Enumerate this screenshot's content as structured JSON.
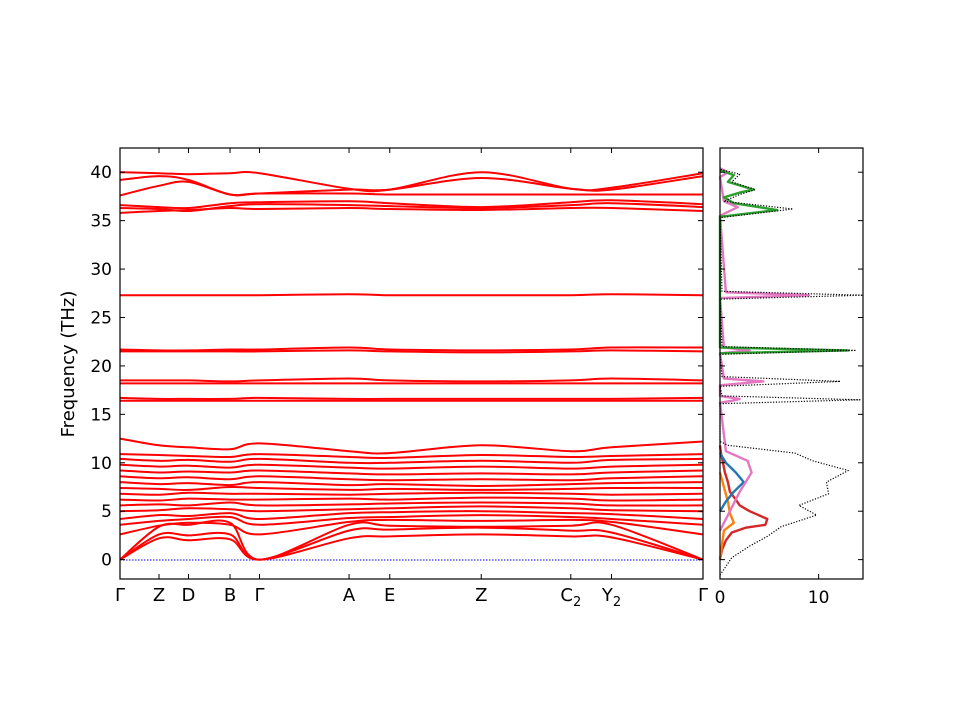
{
  "chart_data": [
    {
      "type": "line",
      "title": "",
      "ylabel": "Frequency (THz)",
      "xlabel": "",
      "ylim": [
        -2,
        42.5
      ],
      "yticks": [
        0,
        5,
        10,
        15,
        20,
        25,
        30,
        35,
        40
      ],
      "grid": false,
      "xticks": [
        {
          "label": "Γ",
          "x": 0
        },
        {
          "label": "Z",
          "x": 0.139
        },
        {
          "label": "D",
          "x": 0.244
        },
        {
          "label": "B",
          "x": 0.392
        },
        {
          "label": "Γ",
          "x": 0.497
        },
        {
          "label": "A",
          "x": 0.816
        },
        {
          "label": "E",
          "x": 0.961
        },
        {
          "label": "Z",
          "x": 1.287
        },
        {
          "label": "C",
          "sub": "2",
          "x": 1.606
        },
        {
          "label": "Y",
          "sub": "2",
          "x": 1.751
        },
        {
          "label": "Γ",
          "x": 2.077
        }
      ],
      "line_color": "#ff0000",
      "zero_line_color": "#0000ff",
      "series": [
        {
          "values": [
            0,
            2.2,
            2.0,
            2.1,
            0,
            2.2,
            2.4,
            2.6,
            2.4,
            2.3,
            0
          ]
        },
        {
          "values": [
            0,
            2.6,
            2.5,
            2.6,
            0,
            3.0,
            3.1,
            3.3,
            3.0,
            2.8,
            0
          ]
        },
        {
          "values": [
            0,
            3.4,
            3.6,
            3.8,
            0,
            3.6,
            3.5,
            3.4,
            3.5,
            3.6,
            0
          ]
        },
        {
          "values": [
            2.6,
            3.5,
            3.8,
            3.6,
            2.6,
            3.9,
            4.1,
            4.0,
            4.1,
            3.9,
            2.6
          ]
        },
        {
          "values": [
            3.6,
            4.0,
            4.2,
            4.4,
            3.6,
            4.3,
            4.4,
            4.6,
            4.4,
            4.2,
            3.6
          ]
        },
        {
          "values": [
            4.2,
            4.6,
            4.5,
            4.8,
            4.2,
            4.8,
            4.9,
            5.0,
            4.8,
            4.7,
            4.2
          ]
        },
        {
          "values": [
            5.0,
            5.1,
            5.3,
            5.2,
            5.0,
            5.2,
            5.3,
            5.5,
            5.3,
            5.1,
            5.0
          ]
        },
        {
          "values": [
            5.6,
            5.7,
            5.6,
            5.9,
            5.6,
            5.7,
            5.8,
            5.9,
            5.8,
            5.6,
            5.6
          ]
        },
        {
          "values": [
            6.2,
            6.1,
            6.3,
            6.2,
            6.2,
            6.3,
            6.2,
            6.4,
            6.3,
            6.1,
            6.2
          ]
        },
        {
          "values": [
            6.8,
            6.7,
            6.9,
            6.8,
            6.8,
            6.7,
            6.8,
            6.9,
            6.8,
            6.7,
            6.8
          ]
        },
        {
          "values": [
            7.4,
            7.3,
            7.2,
            7.5,
            7.4,
            7.2,
            7.3,
            7.2,
            7.3,
            7.4,
            7.4
          ]
        },
        {
          "values": [
            8.0,
            7.8,
            7.9,
            7.7,
            8.0,
            7.7,
            7.8,
            7.6,
            7.8,
            7.9,
            8.0
          ]
        },
        {
          "values": [
            8.6,
            8.4,
            8.5,
            8.3,
            8.6,
            8.3,
            8.2,
            8.3,
            8.2,
            8.4,
            8.6
          ]
        },
        {
          "values": [
            9.2,
            9.0,
            9.1,
            9.0,
            9.2,
            8.9,
            8.8,
            8.9,
            8.8,
            9.0,
            9.2
          ]
        },
        {
          "values": [
            9.8,
            9.6,
            9.7,
            9.5,
            9.8,
            9.5,
            9.4,
            9.6,
            9.4,
            9.6,
            9.8
          ]
        },
        {
          "values": [
            10.4,
            10.2,
            10.3,
            10.1,
            10.4,
            10.0,
            10.0,
            10.2,
            10.0,
            10.3,
            10.4
          ]
        },
        {
          "values": [
            10.9,
            10.8,
            10.7,
            10.6,
            10.9,
            10.6,
            10.5,
            10.8,
            10.6,
            10.7,
            10.9
          ]
        },
        {
          "values": [
            12.5,
            11.8,
            11.6,
            11.4,
            12.0,
            11.2,
            11.0,
            11.8,
            11.2,
            11.6,
            12.2
          ]
        },
        {
          "values": [
            16.4,
            16.4,
            16.4,
            16.4,
            16.4,
            16.4,
            16.4,
            16.4,
            16.4,
            16.4,
            16.4
          ]
        },
        {
          "values": [
            16.7,
            16.6,
            16.6,
            16.6,
            16.7,
            16.6,
            16.6,
            16.6,
            16.6,
            16.6,
            16.7
          ]
        },
        {
          "values": [
            18.2,
            18.2,
            18.2,
            18.2,
            18.2,
            18.2,
            18.2,
            18.2,
            18.2,
            18.2,
            18.2
          ]
        },
        {
          "values": [
            18.5,
            18.5,
            18.5,
            18.4,
            18.5,
            18.7,
            18.5,
            18.4,
            18.5,
            18.7,
            18.5
          ]
        },
        {
          "values": [
            21.5,
            21.5,
            21.5,
            21.5,
            21.5,
            21.6,
            21.5,
            21.4,
            21.5,
            21.6,
            21.5
          ]
        },
        {
          "values": [
            21.7,
            21.6,
            21.6,
            21.7,
            21.7,
            21.9,
            21.7,
            21.6,
            21.7,
            21.9,
            21.9
          ]
        },
        {
          "values": [
            27.3,
            27.3,
            27.3,
            27.3,
            27.3,
            27.4,
            27.3,
            27.3,
            27.3,
            27.4,
            27.3
          ]
        },
        {
          "values": [
            35.8,
            36.0,
            36.1,
            36.3,
            36.2,
            36.3,
            36.2,
            36.1,
            36.3,
            36.3,
            36.0
          ]
        },
        {
          "values": [
            36.3,
            36.2,
            36.0,
            36.5,
            36.7,
            36.6,
            36.5,
            36.3,
            36.6,
            36.8,
            36.4
          ]
        },
        {
          "values": [
            36.6,
            36.4,
            36.3,
            36.8,
            36.9,
            37.0,
            36.8,
            36.4,
            36.9,
            37.1,
            36.7
          ]
        },
        {
          "values": [
            37.6,
            38.6,
            39.0,
            37.7,
            37.8,
            37.8,
            37.7,
            37.7,
            37.7,
            37.7,
            37.7
          ]
        },
        {
          "values": [
            39.2,
            39.6,
            39.2,
            37.7,
            37.8,
            38.2,
            38.2,
            39.4,
            38.3,
            38.2,
            39.6
          ]
        },
        {
          "values": [
            40.0,
            39.9,
            39.8,
            39.9,
            39.9,
            38.3,
            38.2,
            40.0,
            38.3,
            38.4,
            39.9
          ]
        }
      ]
    },
    {
      "type": "area",
      "title": "",
      "xlabel": "",
      "ylabel": "",
      "xlim": [
        0,
        14.5
      ],
      "xticks": [
        0,
        10
      ],
      "ylim": [
        -2,
        42.5
      ],
      "total_line_color": "#000000",
      "series": [
        {
          "name": "",
          "color": "#d62728",
          "values": [
            [
              0,
              0
            ],
            [
              0.2,
              1.0
            ],
            [
              0.6,
              2.0
            ],
            [
              1.2,
              2.8
            ],
            [
              2.6,
              3.3
            ],
            [
              4.6,
              3.6
            ],
            [
              4.8,
              4.2
            ],
            [
              3.0,
              5.0
            ],
            [
              2.0,
              5.6
            ],
            [
              1.6,
              6.2
            ],
            [
              1.0,
              7.0
            ],
            [
              0.8,
              8.0
            ],
            [
              0.5,
              9.0
            ],
            [
              0.3,
              10.0
            ],
            [
              0.1,
              11.0
            ],
            [
              0,
              11.8
            ]
          ]
        },
        {
          "name": "",
          "color": "#ff7f0e",
          "values": [
            [
              0,
              0
            ],
            [
              0.4,
              3.0
            ],
            [
              1.4,
              3.8
            ],
            [
              1.0,
              4.8
            ],
            [
              0.8,
              6.0
            ],
            [
              0.4,
              7.5
            ],
            [
              0,
              9.0
            ]
          ]
        },
        {
          "name": "",
          "color": "#1f77b4",
          "values": [
            [
              0,
              5.0
            ],
            [
              0.6,
              6.0
            ],
            [
              1.4,
              7.0
            ],
            [
              2.4,
              8.0
            ],
            [
              1.6,
              9.0
            ],
            [
              0.6,
              10.0
            ],
            [
              0,
              11.0
            ]
          ]
        },
        {
          "name": "",
          "color": "#e377c2",
          "values": [
            [
              0,
              3.0
            ],
            [
              1.0,
              5.0
            ],
            [
              2.0,
              7.0
            ],
            [
              3.2,
              9.0
            ],
            [
              2.8,
              10.2
            ],
            [
              0.6,
              11.2
            ],
            [
              0,
              16.2
            ],
            [
              1.2,
              16.4
            ],
            [
              2.0,
              16.6
            ],
            [
              0,
              16.9
            ],
            [
              0,
              18.0
            ],
            [
              4.4,
              18.4
            ],
            [
              0.4,
              18.7
            ],
            [
              0,
              21.3
            ],
            [
              3.0,
              21.6
            ],
            [
              0.4,
              21.9
            ],
            [
              0,
              27.0
            ],
            [
              9.0,
              27.3
            ],
            [
              0.6,
              27.6
            ],
            [
              0,
              35.5
            ],
            [
              1.8,
              36.4
            ],
            [
              0.4,
              37.0
            ],
            [
              0,
              39.5
            ],
            [
              0.8,
              40.0
            ],
            [
              0,
              40.4
            ]
          ]
        },
        {
          "name": "",
          "color": "#2ca02c",
          "values": [
            [
              0,
              21.3
            ],
            [
              13.0,
              21.6
            ],
            [
              0,
              21.9
            ],
            [
              0,
              35.4
            ],
            [
              5.8,
              36.1
            ],
            [
              1.4,
              36.8
            ],
            [
              0.4,
              37.4
            ],
            [
              2.0,
              37.9
            ],
            [
              3.4,
              38.2
            ],
            [
              0.8,
              39.0
            ],
            [
              1.4,
              39.7
            ],
            [
              0,
              40.2
            ]
          ]
        },
        {
          "name": "",
          "color": "#000000",
          "dotted": true,
          "values": [
            [
              0,
              -1.6
            ],
            [
              1.2,
              0.2
            ],
            [
              3.0,
              1.4
            ],
            [
              4.8,
              2.4
            ],
            [
              6.2,
              3.4
            ],
            [
              9.8,
              4.6
            ],
            [
              8.0,
              5.6
            ],
            [
              11.0,
              6.8
            ],
            [
              10.8,
              8.0
            ],
            [
              13.0,
              9.2
            ],
            [
              9.4,
              10.2
            ],
            [
              7.6,
              11.0
            ],
            [
              0.8,
              11.8
            ],
            [
              0,
              12.2
            ],
            [
              0,
              16.1
            ],
            [
              14.2,
              16.5
            ],
            [
              0.2,
              16.9
            ],
            [
              0,
              17.9
            ],
            [
              12.2,
              18.4
            ],
            [
              0.2,
              18.9
            ],
            [
              0,
              21.2
            ],
            [
              13.8,
              21.6
            ],
            [
              0.2,
              22.0
            ],
            [
              0,
              26.9
            ],
            [
              14.5,
              27.3
            ],
            [
              0.2,
              27.7
            ],
            [
              0,
              35.3
            ],
            [
              7.4,
              36.2
            ],
            [
              0.4,
              37.0
            ],
            [
              2.0,
              37.7
            ],
            [
              3.6,
              38.2
            ],
            [
              1.2,
              39.0
            ],
            [
              2.0,
              39.8
            ],
            [
              0,
              40.3
            ]
          ]
        }
      ]
    }
  ]
}
